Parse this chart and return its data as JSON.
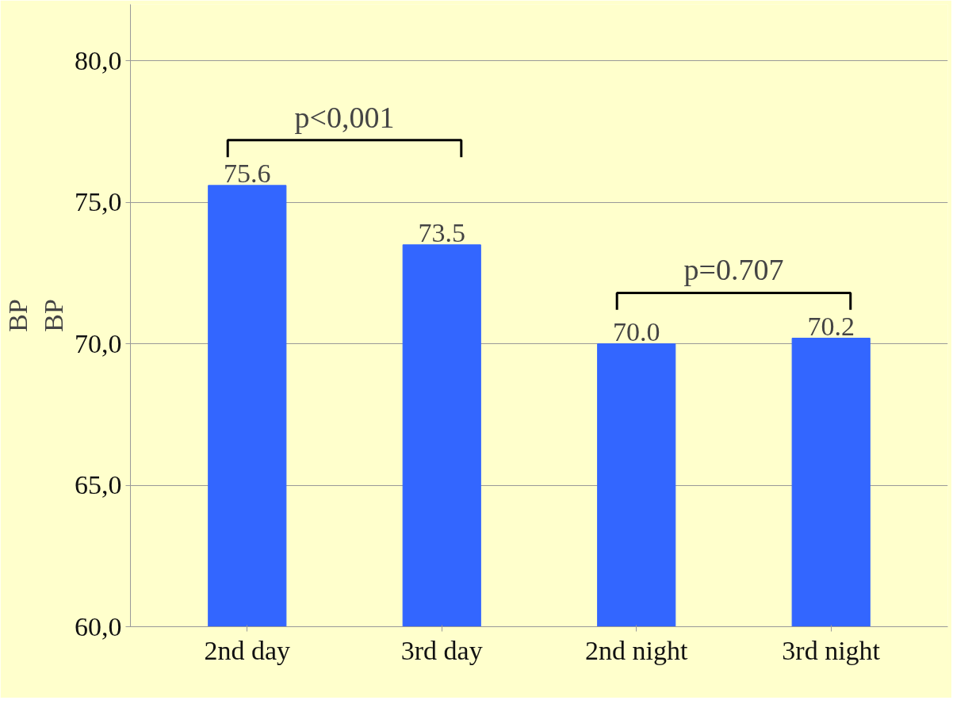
{
  "chart_data": {
    "type": "bar",
    "ylabel": "BP",
    "categories": [
      "2nd day",
      "3rd day",
      "2nd night",
      "3rd night"
    ],
    "values": [
      75.6,
      73.5,
      70.0,
      70.2
    ],
    "color": "#3366ff",
    "value_labels": [
      "75.6",
      "73.5",
      "70.0",
      "70.2"
    ],
    "ylim": [
      60,
      80
    ],
    "yticks": [
      {
        "value": 60,
        "label": "60,0"
      },
      {
        "value": 65,
        "label": "65,0"
      },
      {
        "value": 70,
        "label": "70,0"
      },
      {
        "value": 75,
        "label": "75,0"
      },
      {
        "value": 80,
        "label": "80,0"
      }
    ],
    "grid": "y",
    "annotations": [
      "p<0,001",
      "p=0.707",
      "BP"
    ]
  }
}
